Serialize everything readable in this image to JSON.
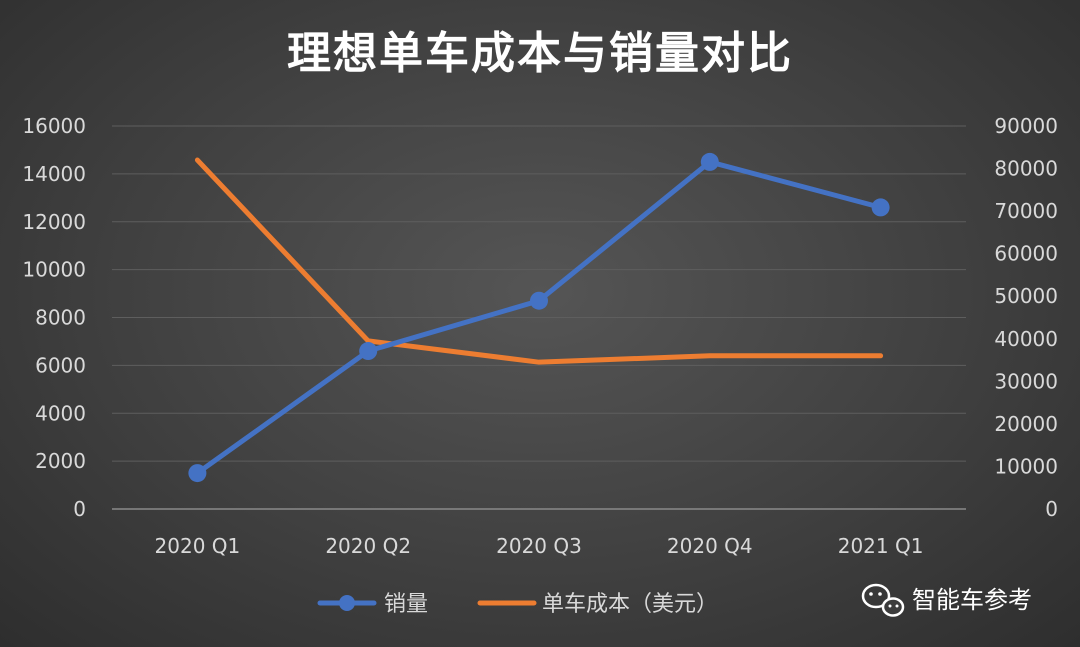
{
  "chart_data": {
    "type": "line",
    "title": "理想单车成本与销量对比",
    "categories": [
      "2020 Q1",
      "2020 Q2",
      "2020 Q3",
      "2020 Q4",
      "2021 Q1"
    ],
    "y_left": {
      "ylim": [
        0,
        16000
      ],
      "ticks": [
        "0",
        "2000",
        "4000",
        "6000",
        "8000",
        "10000",
        "12000",
        "14000",
        "16000"
      ]
    },
    "y_right": {
      "ylim": [
        0,
        90000
      ],
      "ticks": [
        "0",
        "10000",
        "20000",
        "30000",
        "40000",
        "50000",
        "60000",
        "70000",
        "80000",
        "90000"
      ]
    },
    "grid": true,
    "legend_position": "bottom",
    "series": [
      {
        "name": "销量",
        "axis": "left",
        "color": "#4472c4",
        "markers": true,
        "values": [
          1500,
          6600,
          8700,
          14500,
          12600
        ]
      },
      {
        "name": "单车成本（美元）",
        "axis": "right",
        "color": "#ed7d31",
        "markers": false,
        "values": [
          82000,
          39500,
          34500,
          36000,
          36000
        ]
      }
    ]
  },
  "watermark": {
    "text": "智能车参考",
    "icon": "wechat-icon"
  }
}
